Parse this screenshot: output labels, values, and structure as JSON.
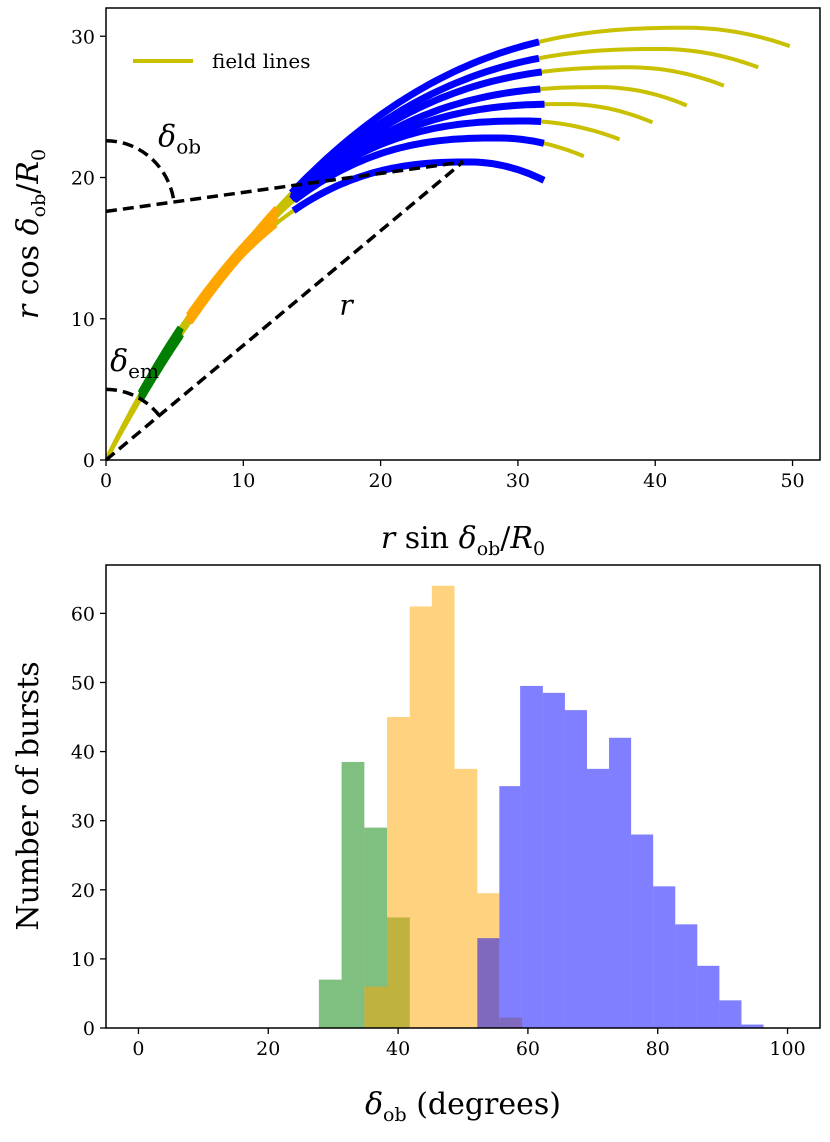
{
  "chart_data": [
    {
      "type": "line",
      "xlabel": "r sin δob/R0",
      "ylabel": "r cos δob/R0",
      "xlim": [
        0,
        52
      ],
      "ylim": [
        0,
        32
      ],
      "xticks": [
        0,
        10,
        20,
        30,
        40,
        50
      ],
      "yticks": [
        0,
        10,
        20,
        30
      ],
      "legend": {
        "label": "field lines",
        "position": "top-left"
      },
      "annotations": {
        "delta_ob": "δob",
        "delta_em": "δem",
        "r": "r"
      },
      "colors": {
        "field": "#c8c000",
        "blue": "#0000ff",
        "orange": "#ffa500",
        "green": "#007f00",
        "line": "#000000"
      },
      "series": [
        {
          "name": "field line 1",
          "apex": [
            42.3,
            30.6
          ],
          "end_x": 49.8
        },
        {
          "name": "field line 2",
          "apex": [
            40.4,
            29.1
          ],
          "end_x": 47.5
        },
        {
          "name": "field line 3",
          "apex": [
            38.2,
            27.8
          ],
          "end_x": 45.0
        },
        {
          "name": "field line 4",
          "apex": [
            36.0,
            26.4
          ],
          "end_x": 42.3
        },
        {
          "name": "field line 5",
          "apex": [
            33.5,
            25.2
          ],
          "end_x": 39.8
        },
        {
          "name": "field line 6",
          "apex": [
            30.5,
            24.0
          ],
          "end_x": 37.4
        },
        {
          "name": "field line 7",
          "apex": [
            28.5,
            22.8
          ],
          "end_x": 34.8
        },
        {
          "name": "field line 8",
          "apex": [
            26.5,
            21.1
          ],
          "end_x": 31.9
        }
      ],
      "regions": [
        {
          "name": "blue",
          "x_range": [
            13.5,
            32.0
          ]
        },
        {
          "name": "orange",
          "x_range": [
            6.0,
            12.5
          ]
        },
        {
          "name": "green",
          "x_range": [
            2.5,
            5.5
          ]
        }
      ]
    },
    {
      "type": "bar",
      "xlabel": "δob (degrees)",
      "ylabel": "Number of bursts",
      "xlim": [
        -5,
        105
      ],
      "ylim": [
        0,
        67
      ],
      "xticks": [
        0,
        20,
        40,
        60,
        80,
        100
      ],
      "yticks": [
        0,
        10,
        20,
        30,
        40,
        50,
        60
      ],
      "series": [
        {
          "name": "green",
          "color": "#008000",
          "bin_edges": [
            27.8,
            31.3,
            34.8,
            38.3,
            41.8
          ],
          "values": [
            7,
            38.5,
            29,
            16
          ]
        },
        {
          "name": "orange",
          "color": "#ffa500",
          "bin_edges": [
            34.8,
            38.3,
            41.8,
            45.2,
            48.7,
            52.2,
            55.6,
            59.1
          ],
          "values": [
            6,
            45,
            61,
            64,
            37.5,
            19.5,
            1.5
          ]
        },
        {
          "name": "blue",
          "color": "#0000ff",
          "bin_edges": [
            52.2,
            55.6,
            58.8,
            62.3,
            65.7,
            69.1,
            72.5,
            75.9,
            79.3,
            82.7,
            86.1,
            89.5,
            92.9,
            96.3
          ],
          "values": [
            13,
            35,
            49.5,
            48.5,
            46,
            37.5,
            42,
            28,
            20.5,
            15,
            9,
            4,
            0.5
          ]
        }
      ]
    }
  ]
}
